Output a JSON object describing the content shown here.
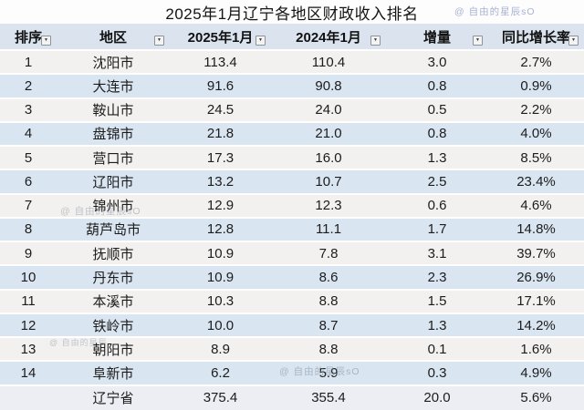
{
  "title": "2025年1月辽宁各地区财政收入排名",
  "watermarks": {
    "top_right": "@ 自由的星辰sO",
    "row7": "@ 自由的星辰sO",
    "row13": "@ 自由的星辰",
    "row14": "@ 自由的星辰sO"
  },
  "filter_icon": "▼",
  "chart_data": {
    "type": "table",
    "title": "2025年1月辽宁各地区财政收入排名",
    "columns": [
      "排序",
      "地区",
      "2025年1月",
      "2024年1月",
      "增量",
      "同比增长率"
    ],
    "rows": [
      [
        "1",
        "沈阳市",
        "113.4",
        "110.4",
        "3.0",
        "2.7%"
      ],
      [
        "2",
        "大连市",
        "91.6",
        "90.8",
        "0.8",
        "0.9%"
      ],
      [
        "3",
        "鞍山市",
        "24.5",
        "24.0",
        "0.5",
        "2.2%"
      ],
      [
        "4",
        "盘锦市",
        "21.8",
        "21.0",
        "0.8",
        "4.0%"
      ],
      [
        "5",
        "营口市",
        "17.3",
        "16.0",
        "1.3",
        "8.5%"
      ],
      [
        "6",
        "辽阳市",
        "13.2",
        "10.7",
        "2.5",
        "23.4%"
      ],
      [
        "7",
        "锦州市",
        "12.9",
        "12.3",
        "0.6",
        "4.6%"
      ],
      [
        "8",
        "葫芦岛市",
        "12.8",
        "11.1",
        "1.7",
        "14.8%"
      ],
      [
        "9",
        "抚顺市",
        "10.9",
        "7.8",
        "3.1",
        "39.7%"
      ],
      [
        "10",
        "丹东市",
        "10.9",
        "8.6",
        "2.3",
        "26.9%"
      ],
      [
        "11",
        "本溪市",
        "10.3",
        "8.8",
        "1.5",
        "17.1%"
      ],
      [
        "12",
        "铁岭市",
        "10.0",
        "8.7",
        "1.3",
        "14.2%"
      ],
      [
        "13",
        "朝阳市",
        "8.9",
        "8.8",
        "0.1",
        "1.6%"
      ],
      [
        "14",
        "阜新市",
        "6.2",
        "5.9",
        "0.3",
        "4.9%"
      ]
    ],
    "total_row": [
      "",
      "辽宁省",
      "375.4",
      "355.4",
      "20.0",
      "5.6%"
    ]
  },
  "colors": {
    "header_bg": "#dae3ee",
    "row_odd": "#f2f1ef",
    "row_even": "#d9e5f1",
    "total_bg": "#eceef3",
    "watermark_blue": "#8998c5",
    "watermark_gray": "#7d879b"
  }
}
